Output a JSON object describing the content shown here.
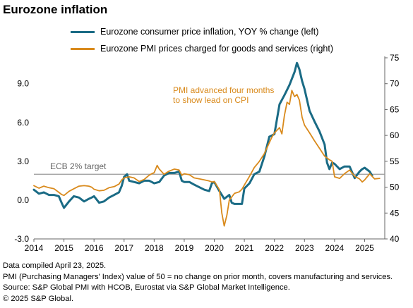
{
  "title": "Eurozone inflation",
  "chart_data": {
    "type": "line",
    "x_range": [
      2014.0,
      2025.67
    ],
    "x_ticks": [
      "2014",
      "2015",
      "2016",
      "2017",
      "2018",
      "2019",
      "2020",
      "2021",
      "2022",
      "2023",
      "2024",
      "2025"
    ],
    "left_axis": {
      "min": -3.0,
      "max": 11.0,
      "ticks": [
        "9.0",
        "6.0",
        "3.0",
        "0.0",
        "-3.0"
      ]
    },
    "right_axis": {
      "min": 40,
      "max": 75,
      "ticks": [
        "75",
        "70",
        "65",
        "60",
        "55",
        "50",
        "45",
        "40"
      ]
    },
    "series": [
      {
        "name": "Eurozone consumer price inflation, YOY % change (left)",
        "axis": "left",
        "color": "#1a6b85",
        "points": [
          [
            2014.0,
            0.8
          ],
          [
            2014.17,
            0.5
          ],
          [
            2014.33,
            0.6
          ],
          [
            2014.5,
            0.4
          ],
          [
            2014.67,
            0.4
          ],
          [
            2014.83,
            0.3
          ],
          [
            2014.92,
            -0.2
          ],
          [
            2015.0,
            -0.6
          ],
          [
            2015.17,
            -0.1
          ],
          [
            2015.33,
            0.3
          ],
          [
            2015.5,
            0.2
          ],
          [
            2015.67,
            -0.1
          ],
          [
            2015.83,
            0.1
          ],
          [
            2015.92,
            0.2
          ],
          [
            2016.0,
            0.3
          ],
          [
            2016.17,
            -0.2
          ],
          [
            2016.33,
            -0.1
          ],
          [
            2016.5,
            0.2
          ],
          [
            2016.67,
            0.4
          ],
          [
            2016.83,
            0.6
          ],
          [
            2016.92,
            1.1
          ],
          [
            2017.0,
            1.8
          ],
          [
            2017.1,
            2.0
          ],
          [
            2017.17,
            1.5
          ],
          [
            2017.33,
            1.4
          ],
          [
            2017.5,
            1.3
          ],
          [
            2017.67,
            1.5
          ],
          [
            2017.83,
            1.5
          ],
          [
            2017.92,
            1.4
          ],
          [
            2018.0,
            1.3
          ],
          [
            2018.17,
            1.4
          ],
          [
            2018.33,
            1.9
          ],
          [
            2018.5,
            2.1
          ],
          [
            2018.67,
            2.1
          ],
          [
            2018.83,
            2.2
          ],
          [
            2018.92,
            1.5
          ],
          [
            2019.0,
            1.4
          ],
          [
            2019.17,
            1.4
          ],
          [
            2019.33,
            1.2
          ],
          [
            2019.5,
            1.0
          ],
          [
            2019.67,
            0.8
          ],
          [
            2019.83,
            0.7
          ],
          [
            2019.92,
            1.3
          ],
          [
            2020.0,
            1.4
          ],
          [
            2020.17,
            0.7
          ],
          [
            2020.33,
            0.1
          ],
          [
            2020.5,
            0.4
          ],
          [
            2020.58,
            -0.2
          ],
          [
            2020.67,
            -0.3
          ],
          [
            2020.83,
            -0.3
          ],
          [
            2020.92,
            -0.3
          ],
          [
            2021.0,
            0.9
          ],
          [
            2021.17,
            1.3
          ],
          [
            2021.33,
            2.0
          ],
          [
            2021.5,
            2.2
          ],
          [
            2021.67,
            3.4
          ],
          [
            2021.83,
            4.9
          ],
          [
            2021.92,
            5.0
          ],
          [
            2022.0,
            5.1
          ],
          [
            2022.17,
            7.4
          ],
          [
            2022.33,
            8.1
          ],
          [
            2022.5,
            8.9
          ],
          [
            2022.67,
            9.9
          ],
          [
            2022.75,
            10.6
          ],
          [
            2022.83,
            10.1
          ],
          [
            2022.92,
            9.2
          ],
          [
            2023.0,
            8.6
          ],
          [
            2023.17,
            6.9
          ],
          [
            2023.33,
            6.1
          ],
          [
            2023.5,
            5.3
          ],
          [
            2023.67,
            4.3
          ],
          [
            2023.75,
            2.9
          ],
          [
            2023.83,
            2.4
          ],
          [
            2023.92,
            2.9
          ],
          [
            2024.0,
            2.8
          ],
          [
            2024.17,
            2.4
          ],
          [
            2024.33,
            2.6
          ],
          [
            2024.5,
            2.6
          ],
          [
            2024.67,
            1.7
          ],
          [
            2024.83,
            2.2
          ],
          [
            2024.92,
            2.4
          ],
          [
            2025.0,
            2.5
          ],
          [
            2025.17,
            2.2
          ],
          [
            2025.25,
            1.9
          ]
        ]
      },
      {
        "name": "Eurozone PMI prices charged for goods and services (right)",
        "axis": "right",
        "color": "#d98a1c",
        "points": [
          [
            2014.0,
            50.3
          ],
          [
            2014.17,
            49.8
          ],
          [
            2014.33,
            50.2
          ],
          [
            2014.5,
            49.9
          ],
          [
            2014.67,
            49.7
          ],
          [
            2014.83,
            49.0
          ],
          [
            2014.92,
            48.6
          ],
          [
            2015.0,
            48.4
          ],
          [
            2015.17,
            49.2
          ],
          [
            2015.33,
            49.7
          ],
          [
            2015.5,
            50.2
          ],
          [
            2015.67,
            50.3
          ],
          [
            2015.83,
            50.2
          ],
          [
            2015.92,
            50.0
          ],
          [
            2016.0,
            49.6
          ],
          [
            2016.17,
            49.3
          ],
          [
            2016.33,
            49.4
          ],
          [
            2016.5,
            49.9
          ],
          [
            2016.67,
            50.1
          ],
          [
            2016.83,
            50.6
          ],
          [
            2016.92,
            51.4
          ],
          [
            2017.0,
            51.8
          ],
          [
            2017.17,
            52.0
          ],
          [
            2017.33,
            51.8
          ],
          [
            2017.5,
            51.1
          ],
          [
            2017.67,
            51.5
          ],
          [
            2017.83,
            52.3
          ],
          [
            2017.92,
            52.6
          ],
          [
            2018.0,
            52.8
          ],
          [
            2018.1,
            54.2
          ],
          [
            2018.17,
            53.5
          ],
          [
            2018.33,
            52.5
          ],
          [
            2018.5,
            53.1
          ],
          [
            2018.67,
            53.5
          ],
          [
            2018.83,
            53.3
          ],
          [
            2018.92,
            52.3
          ],
          [
            2019.0,
            52.6
          ],
          [
            2019.17,
            52.4
          ],
          [
            2019.33,
            51.8
          ],
          [
            2019.5,
            51.6
          ],
          [
            2019.67,
            51.4
          ],
          [
            2019.83,
            51.2
          ],
          [
            2019.92,
            51.0
          ],
          [
            2020.0,
            51.1
          ],
          [
            2020.17,
            49.5
          ],
          [
            2020.25,
            45.0
          ],
          [
            2020.33,
            42.5
          ],
          [
            2020.42,
            44.6
          ],
          [
            2020.5,
            47.5
          ],
          [
            2020.67,
            48.8
          ],
          [
            2020.83,
            49.1
          ],
          [
            2020.92,
            49.6
          ],
          [
            2021.0,
            50.4
          ],
          [
            2021.17,
            52.1
          ],
          [
            2021.33,
            53.8
          ],
          [
            2021.5,
            55.0
          ],
          [
            2021.67,
            56.5
          ],
          [
            2021.83,
            58.6
          ],
          [
            2021.92,
            59.7
          ],
          [
            2022.0,
            60.5
          ],
          [
            2022.17,
            61.5
          ],
          [
            2022.25,
            60.3
          ],
          [
            2022.33,
            63.8
          ],
          [
            2022.42,
            66.4
          ],
          [
            2022.5,
            66.0
          ],
          [
            2022.58,
            68.7
          ],
          [
            2022.67,
            67.5
          ],
          [
            2022.75,
            67.9
          ],
          [
            2022.83,
            66.8
          ],
          [
            2022.92,
            63.5
          ],
          [
            2023.0,
            62.0
          ],
          [
            2023.17,
            60.5
          ],
          [
            2023.33,
            59.0
          ],
          [
            2023.5,
            57.5
          ],
          [
            2023.67,
            56.0
          ],
          [
            2023.83,
            55.3
          ],
          [
            2023.92,
            55.0
          ],
          [
            2024.0,
            52.0
          ],
          [
            2024.17,
            51.7
          ],
          [
            2024.33,
            52.6
          ],
          [
            2024.5,
            53.3
          ],
          [
            2024.67,
            52.1
          ],
          [
            2024.83,
            51.6
          ],
          [
            2024.92,
            51.0
          ],
          [
            2025.0,
            51.4
          ],
          [
            2025.17,
            52.6
          ],
          [
            2025.33,
            51.6
          ],
          [
            2025.5,
            51.7
          ]
        ]
      }
    ],
    "reference_line": {
      "label": "ECB 2% target",
      "value": 2.0,
      "axis": "left",
      "color": "#999999"
    },
    "annotation": {
      "lines": [
        "PMI advanced four months",
        "to show lead on CPI"
      ],
      "color": "#d98a1c"
    },
    "grid": false,
    "legend_position": "top"
  },
  "footer": [
    "Data compiled April 23, 2025.",
    "PMI (Purchasing Managers' Index) value of 50 = no change on prior month, covers manufacturing and services.",
    "Source: S&P Global PMI with HCOB, Eurostat via S&P Global Market Intelligence.",
    "© 2025 S&P Global."
  ]
}
